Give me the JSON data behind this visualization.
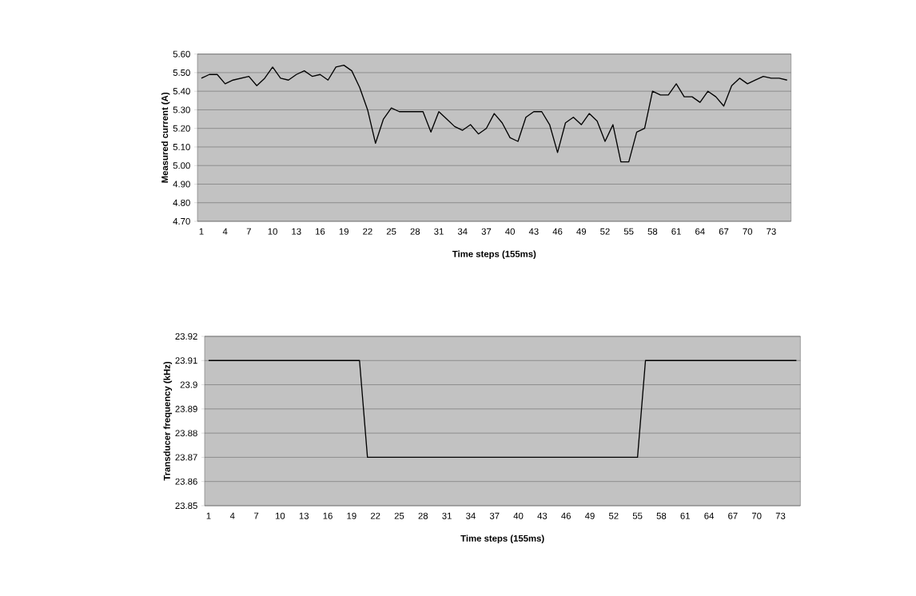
{
  "chart_data": [
    {
      "type": "line",
      "xlabel": "Time steps (155ms)",
      "ylabel": "Measured current (A)",
      "grid": "y",
      "color": "#000000",
      "categories": [
        "1",
        null,
        null,
        "4",
        null,
        null,
        "7",
        null,
        null,
        "10",
        null,
        null,
        "13",
        null,
        null,
        "16",
        null,
        null,
        "19",
        null,
        null,
        "22",
        null,
        null,
        "25",
        null,
        null,
        "28",
        null,
        null,
        "31",
        null,
        null,
        "34",
        null,
        null,
        "37",
        null,
        null,
        "40",
        null,
        null,
        "43",
        null,
        null,
        "46",
        null,
        null,
        "49",
        null,
        null,
        "52",
        null,
        null,
        "55",
        null,
        null,
        "58",
        null,
        null,
        "61",
        null,
        null,
        "64",
        null,
        null,
        "67",
        null,
        null,
        "70",
        null,
        null,
        "73",
        null,
        null
      ],
      "values": [
        5.47,
        5.49,
        5.49,
        5.44,
        5.46,
        5.47,
        5.48,
        5.43,
        5.47,
        5.53,
        5.47,
        5.46,
        5.49,
        5.51,
        5.48,
        5.49,
        5.46,
        5.53,
        5.54,
        5.51,
        5.42,
        5.3,
        5.12,
        5.25,
        5.31,
        5.29,
        5.29,
        5.29,
        5.29,
        5.18,
        5.29,
        5.25,
        5.21,
        5.19,
        5.22,
        5.17,
        5.2,
        5.28,
        5.23,
        5.15,
        5.13,
        5.26,
        5.29,
        5.29,
        5.22,
        5.07,
        5.23,
        5.26,
        5.22,
        5.28,
        5.24,
        5.13,
        5.22,
        5.02,
        5.02,
        5.18,
        5.2,
        5.4,
        5.38,
        5.38,
        5.44,
        5.37,
        5.37,
        5.34,
        5.4,
        5.37,
        5.32,
        5.43,
        5.47,
        5.44,
        5.46,
        5.48,
        5.47,
        5.47,
        5.46
      ],
      "ylim": [
        4.7,
        5.6
      ],
      "yticks": [
        {
          "value": 4.7,
          "label": "4.70"
        },
        {
          "value": 4.8,
          "label": "4.80"
        },
        {
          "value": 4.9,
          "label": "4.90"
        },
        {
          "value": 5.0,
          "label": "5.00"
        },
        {
          "value": 5.1,
          "label": "5.10"
        },
        {
          "value": 5.2,
          "label": "5.20"
        },
        {
          "value": 5.3,
          "label": "5.30"
        },
        {
          "value": 5.4,
          "label": "5.40"
        },
        {
          "value": 5.5,
          "label": "5.50"
        },
        {
          "value": 5.6,
          "label": "5.60"
        }
      ]
    },
    {
      "type": "line",
      "xlabel": "Time steps (155ms)",
      "ylabel": "Transducer frequency (kHz)",
      "grid": "y",
      "color": "#000000",
      "categories": [
        "1",
        null,
        null,
        "4",
        null,
        null,
        "7",
        null,
        null,
        "10",
        null,
        null,
        "13",
        null,
        null,
        "16",
        null,
        null,
        "19",
        null,
        null,
        "22",
        null,
        null,
        "25",
        null,
        null,
        "28",
        null,
        null,
        "31",
        null,
        null,
        "34",
        null,
        null,
        "37",
        null,
        null,
        "40",
        null,
        null,
        "43",
        null,
        null,
        "46",
        null,
        null,
        "49",
        null,
        null,
        "52",
        null,
        null,
        "55",
        null,
        null,
        "58",
        null,
        null,
        "61",
        null,
        null,
        "64",
        null,
        null,
        "67",
        null,
        null,
        "70",
        null,
        null,
        "73",
        null,
        null
      ],
      "values": [
        23.91,
        23.91,
        23.91,
        23.91,
        23.91,
        23.91,
        23.91,
        23.91,
        23.91,
        23.91,
        23.91,
        23.91,
        23.91,
        23.91,
        23.91,
        23.91,
        23.91,
        23.91,
        23.91,
        23.91,
        23.87,
        23.87,
        23.87,
        23.87,
        23.87,
        23.87,
        23.87,
        23.87,
        23.87,
        23.87,
        23.87,
        23.87,
        23.87,
        23.87,
        23.87,
        23.87,
        23.87,
        23.87,
        23.87,
        23.87,
        23.87,
        23.87,
        23.87,
        23.87,
        23.87,
        23.87,
        23.87,
        23.87,
        23.87,
        23.87,
        23.87,
        23.87,
        23.87,
        23.87,
        23.87,
        23.91,
        23.91,
        23.91,
        23.91,
        23.91,
        23.91,
        23.91,
        23.91,
        23.91,
        23.91,
        23.91,
        23.91,
        23.91,
        23.91,
        23.91,
        23.91,
        23.91,
        23.91,
        23.91,
        23.91
      ],
      "ylim": [
        23.85,
        23.92
      ],
      "yticks": [
        23.85,
        23.86,
        23.87,
        23.88,
        23.89,
        {
          "value": 23.9,
          "label": "23.9"
        },
        23.91,
        23.92
      ]
    }
  ]
}
